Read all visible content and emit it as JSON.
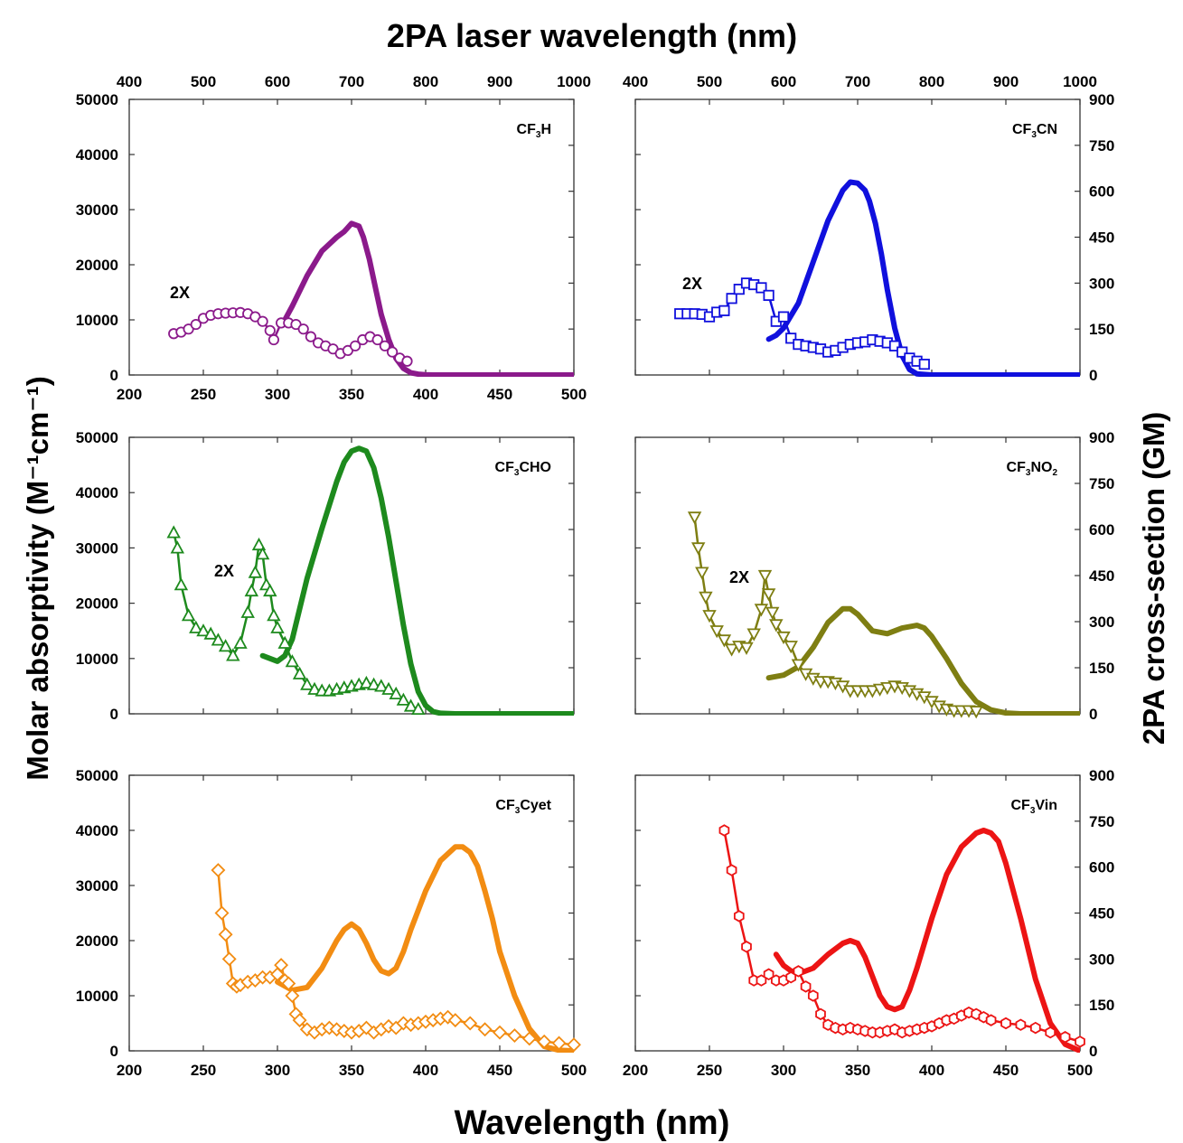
{
  "figure": {
    "top_axis_label": "2PA laser wavelength (nm)",
    "bottom_axis_label": "Wavelength (nm)",
    "left_axis_label": "Molar absorptivity (M⁻¹cm⁻¹)",
    "right_axis_label": "2PA cross-section (GM)"
  },
  "chart_data": [
    {
      "type": "line",
      "panel": "CF3H",
      "title_parts": [
        "CF",
        "3",
        "H"
      ],
      "color": "#8b1a8b",
      "marker": "circle",
      "annotation": "2X",
      "x_bottom_range": [
        200,
        500
      ],
      "x_top_range": [
        400,
        1000
      ],
      "y_left_range": [
        0,
        50000
      ],
      "y_right_range": [
        0,
        900
      ],
      "x_bottom_ticks": [
        "200",
        "250",
        "300",
        "350",
        "400",
        "450",
        "500"
      ],
      "x_top_ticks": [
        "400",
        "500",
        "600",
        "700",
        "800",
        "900",
        "1000"
      ],
      "y_left_ticks": [
        "0",
        "10000",
        "20000",
        "30000",
        "40000",
        "50000"
      ],
      "y_right_ticks": [],
      "series": [
        {
          "axis": "bottom-left",
          "x": [
            305,
            310,
            320,
            330,
            340,
            345,
            350,
            355,
            358,
            362,
            366,
            370,
            375,
            380,
            385,
            390,
            395,
            400,
            405,
            410,
            420,
            440,
            460,
            480,
            500
          ],
          "y": [
            10000,
            12500,
            18000,
            22500,
            25000,
            26000,
            27500,
            27000,
            25000,
            21000,
            16000,
            11000,
            6500,
            3000,
            1200,
            400,
            150,
            50,
            0,
            0,
            0,
            0,
            0,
            0,
            0
          ]
        },
        {
          "axis": "top-right",
          "x": [
            460,
            470,
            480,
            490,
            500,
            510,
            520,
            530,
            540,
            550,
            560,
            570,
            580,
            590,
            595,
            605,
            615,
            625,
            635,
            645,
            655,
            665,
            675,
            685,
            695,
            705,
            715,
            725,
            735,
            745,
            755,
            765,
            775
          ],
          "y": [
            135,
            140,
            150,
            165,
            185,
            195,
            200,
            202,
            203,
            204,
            200,
            190,
            175,
            145,
            115,
            170,
            170,
            165,
            150,
            125,
            105,
            95,
            85,
            70,
            80,
            95,
            115,
            125,
            115,
            95,
            75,
            55,
            45
          ]
        }
      ]
    },
    {
      "type": "line",
      "panel": "CF3CN",
      "title_parts": [
        "CF",
        "3",
        "CN"
      ],
      "color": "#1010dd",
      "marker": "square",
      "annotation": "2X",
      "x_bottom_range": [
        200,
        500
      ],
      "x_top_range": [
        400,
        1000
      ],
      "y_left_range": [
        0,
        50000
      ],
      "y_right_range": [
        0,
        900
      ],
      "x_bottom_ticks": [],
      "x_top_ticks": [
        "400",
        "500",
        "600",
        "700",
        "800",
        "900",
        "1000"
      ],
      "y_left_ticks": [],
      "y_right_ticks": [
        "0",
        "150",
        "300",
        "450",
        "600",
        "750",
        "900"
      ],
      "series": [
        {
          "axis": "bottom-left",
          "x": [
            290,
            295,
            300,
            310,
            320,
            330,
            340,
            345,
            350,
            355,
            358,
            362,
            366,
            370,
            375,
            380,
            385,
            390,
            400,
            420,
            440,
            460,
            480,
            500
          ],
          "y": [
            6500,
            7200,
            8500,
            13000,
            20500,
            28000,
            33500,
            35000,
            34800,
            33500,
            31500,
            27500,
            22000,
            15500,
            8500,
            3500,
            1000,
            200,
            0,
            0,
            0,
            0,
            0,
            0
          ]
        },
        {
          "axis": "top-right",
          "x": [
            460,
            470,
            480,
            490,
            500,
            510,
            520,
            530,
            540,
            550,
            560,
            570,
            580,
            590,
            600,
            610,
            620,
            630,
            640,
            650,
            660,
            670,
            680,
            690,
            700,
            710,
            720,
            730,
            740,
            750,
            760,
            770,
            780,
            790
          ],
          "y": [
            200,
            200,
            200,
            198,
            190,
            205,
            210,
            250,
            280,
            300,
            295,
            285,
            260,
            175,
            190,
            120,
            100,
            95,
            90,
            85,
            75,
            80,
            90,
            100,
            105,
            108,
            115,
            110,
            105,
            95,
            75,
            55,
            45,
            35
          ]
        }
      ]
    },
    {
      "type": "line",
      "panel": "CF3CHO",
      "title_parts": [
        "CF",
        "3",
        "CHO"
      ],
      "color": "#1d8a1d",
      "marker": "triangle-up",
      "annotation": "2X",
      "x_bottom_range": [
        200,
        500
      ],
      "x_top_range": [
        400,
        1000
      ],
      "y_left_range": [
        0,
        50000
      ],
      "y_right_range": [
        0,
        900
      ],
      "x_bottom_ticks": [],
      "x_top_ticks": [],
      "y_left_ticks": [
        "0",
        "10000",
        "20000",
        "30000",
        "40000",
        "50000"
      ],
      "y_right_ticks": [],
      "series": [
        {
          "axis": "bottom-left",
          "x": [
            290,
            295,
            300,
            305,
            310,
            315,
            320,
            330,
            340,
            345,
            350,
            355,
            360,
            365,
            370,
            375,
            380,
            385,
            390,
            395,
            400,
            405,
            410,
            420,
            440,
            460,
            480,
            500
          ],
          "y": [
            10500,
            10000,
            9500,
            10500,
            13500,
            19000,
            24500,
            33500,
            42000,
            45500,
            47500,
            48000,
            47500,
            44500,
            39000,
            32000,
            24000,
            16000,
            9000,
            4000,
            1500,
            400,
            100,
            0,
            0,
            0,
            0,
            0
          ]
        },
        {
          "axis": "top-right",
          "x": [
            460,
            465,
            470,
            480,
            490,
            500,
            510,
            520,
            530,
            540,
            550,
            560,
            565,
            570,
            575,
            580,
            585,
            590,
            595,
            600,
            610,
            620,
            630,
            640,
            650,
            660,
            670,
            680,
            690,
            700,
            710,
            720,
            730,
            740,
            750,
            760,
            770,
            780,
            790
          ],
          "y": [
            590,
            540,
            420,
            320,
            280,
            270,
            260,
            240,
            220,
            190,
            230,
            330,
            400,
            460,
            550,
            520,
            420,
            400,
            320,
            280,
            230,
            170,
            130,
            95,
            80,
            75,
            75,
            80,
            85,
            90,
            95,
            100,
            95,
            90,
            80,
            65,
            45,
            25,
            15
          ]
        }
      ]
    },
    {
      "type": "line",
      "panel": "CF3NO2",
      "title_parts": [
        "CF",
        "3",
        "NO",
        "2"
      ],
      "color": "#7e7e12",
      "marker": "triangle-down",
      "annotation": "2X",
      "x_bottom_range": [
        200,
        500
      ],
      "x_top_range": [
        400,
        1000
      ],
      "y_left_range": [
        0,
        50000
      ],
      "y_right_range": [
        0,
        900
      ],
      "x_bottom_ticks": [],
      "x_top_ticks": [],
      "y_left_ticks": [],
      "y_right_ticks": [
        "0",
        "150",
        "300",
        "450",
        "600",
        "750",
        "900"
      ],
      "series": [
        {
          "axis": "bottom-left",
          "x": [
            290,
            300,
            310,
            320,
            330,
            340,
            345,
            350,
            355,
            360,
            370,
            380,
            390,
            395,
            400,
            410,
            420,
            430,
            440,
            450,
            460,
            480,
            500
          ],
          "y": [
            6500,
            7000,
            8500,
            12000,
            16500,
            19000,
            19000,
            18000,
            16500,
            15000,
            14500,
            15500,
            16000,
            15500,
            14000,
            10000,
            5500,
            2200,
            700,
            150,
            0,
            0,
            0
          ]
        },
        {
          "axis": "top-right",
          "x": [
            480,
            485,
            490,
            495,
            500,
            510,
            520,
            530,
            540,
            550,
            560,
            570,
            575,
            580,
            585,
            590,
            600,
            610,
            620,
            630,
            640,
            650,
            660,
            670,
            680,
            690,
            700,
            710,
            720,
            730,
            740,
            750,
            760,
            770,
            780,
            790,
            800,
            810,
            820,
            830,
            840,
            850,
            860
          ],
          "y": [
            640,
            540,
            460,
            380,
            320,
            270,
            240,
            210,
            220,
            215,
            260,
            340,
            450,
            390,
            330,
            290,
            250,
            220,
            160,
            130,
            115,
            105,
            105,
            100,
            90,
            75,
            75,
            75,
            75,
            80,
            85,
            90,
            85,
            75,
            65,
            55,
            40,
            25,
            15,
            10,
            10,
            10,
            8
          ]
        }
      ]
    },
    {
      "type": "line",
      "panel": "CF3Cyet",
      "title_parts": [
        "CF",
        "3",
        "Cyet"
      ],
      "color": "#f28c12",
      "marker": "diamond",
      "annotation": "",
      "x_bottom_range": [
        200,
        500
      ],
      "x_top_range": [
        400,
        1000
      ],
      "y_left_range": [
        0,
        50000
      ],
      "y_right_range": [
        0,
        900
      ],
      "x_bottom_ticks": [
        "200",
        "250",
        "300",
        "350",
        "400",
        "450",
        "500"
      ],
      "x_top_ticks": [],
      "y_left_ticks": [
        "0",
        "10000",
        "20000",
        "30000",
        "40000",
        "50000"
      ],
      "y_right_ticks": [],
      "series": [
        {
          "axis": "bottom-left",
          "x": [
            300,
            310,
            320,
            330,
            340,
            345,
            350,
            355,
            360,
            365,
            370,
            375,
            380,
            385,
            390,
            400,
            410,
            420,
            425,
            430,
            435,
            440,
            445,
            450,
            460,
            470,
            480,
            490,
            500
          ],
          "y": [
            12500,
            11000,
            11500,
            15000,
            20000,
            22000,
            23000,
            22000,
            19500,
            16500,
            14500,
            14000,
            15000,
            18000,
            22000,
            29000,
            34500,
            37000,
            37000,
            36000,
            33500,
            29000,
            24000,
            18000,
            10000,
            4000,
            800,
            100,
            0
          ]
        },
        {
          "axis": "top-right",
          "x": [
            520,
            525,
            530,
            535,
            540,
            545,
            550,
            560,
            570,
            580,
            590,
            600,
            605,
            610,
            615,
            620,
            625,
            630,
            640,
            650,
            660,
            670,
            680,
            690,
            700,
            710,
            720,
            730,
            740,
            750,
            760,
            770,
            780,
            790,
            800,
            810,
            820,
            830,
            840,
            860,
            880,
            900,
            920,
            940,
            960,
            980,
            1000
          ],
          "y": [
            590,
            450,
            380,
            300,
            220,
            210,
            215,
            225,
            230,
            240,
            240,
            250,
            280,
            230,
            220,
            180,
            120,
            100,
            70,
            60,
            70,
            75,
            70,
            65,
            60,
            65,
            75,
            60,
            70,
            80,
            75,
            90,
            85,
            90,
            95,
            100,
            105,
            110,
            100,
            90,
            70,
            60,
            50,
            40,
            30,
            25,
            20
          ]
        }
      ]
    },
    {
      "type": "line",
      "panel": "CF3Vin",
      "title_parts": [
        "CF",
        "3",
        "Vin"
      ],
      "color": "#ec1414",
      "marker": "hexagon",
      "annotation": "",
      "x_bottom_range": [
        200,
        500
      ],
      "x_top_range": [
        400,
        1000
      ],
      "y_left_range": [
        0,
        50000
      ],
      "y_right_range": [
        0,
        900
      ],
      "x_bottom_ticks": [
        "200",
        "250",
        "300",
        "350",
        "400",
        "450",
        "500"
      ],
      "x_top_ticks": [],
      "y_left_ticks": [],
      "y_right_ticks": [
        "0",
        "150",
        "300",
        "450",
        "600",
        "750",
        "900"
      ],
      "series": [
        {
          "axis": "bottom-left",
          "x": [
            295,
            300,
            305,
            310,
            320,
            330,
            340,
            345,
            350,
            355,
            360,
            365,
            370,
            375,
            380,
            385,
            390,
            400,
            410,
            420,
            430,
            435,
            440,
            445,
            450,
            460,
            470,
            480,
            490,
            500
          ],
          "y": [
            17500,
            15500,
            14500,
            14000,
            15000,
            17500,
            19500,
            20000,
            19500,
            17000,
            13500,
            10000,
            8000,
            7500,
            8000,
            11000,
            15000,
            24000,
            32000,
            37000,
            39500,
            40000,
            39500,
            38000,
            34000,
            24000,
            13000,
            5000,
            1200,
            0
          ]
        },
        {
          "axis": "top-right",
          "x": [
            520,
            530,
            540,
            550,
            560,
            570,
            580,
            590,
            600,
            610,
            620,
            630,
            640,
            650,
            660,
            670,
            680,
            690,
            700,
            710,
            720,
            730,
            740,
            750,
            760,
            770,
            780,
            790,
            800,
            810,
            820,
            830,
            840,
            850,
            860,
            870,
            880,
            900,
            920,
            940,
            960,
            980,
            1000
          ],
          "y": [
            720,
            590,
            440,
            340,
            230,
            230,
            250,
            230,
            230,
            240,
            260,
            210,
            180,
            120,
            85,
            75,
            70,
            75,
            70,
            65,
            60,
            60,
            65,
            70,
            60,
            65,
            70,
            75,
            80,
            90,
            100,
            105,
            115,
            125,
            120,
            110,
            100,
            90,
            85,
            75,
            60,
            45,
            30
          ]
        }
      ]
    }
  ]
}
